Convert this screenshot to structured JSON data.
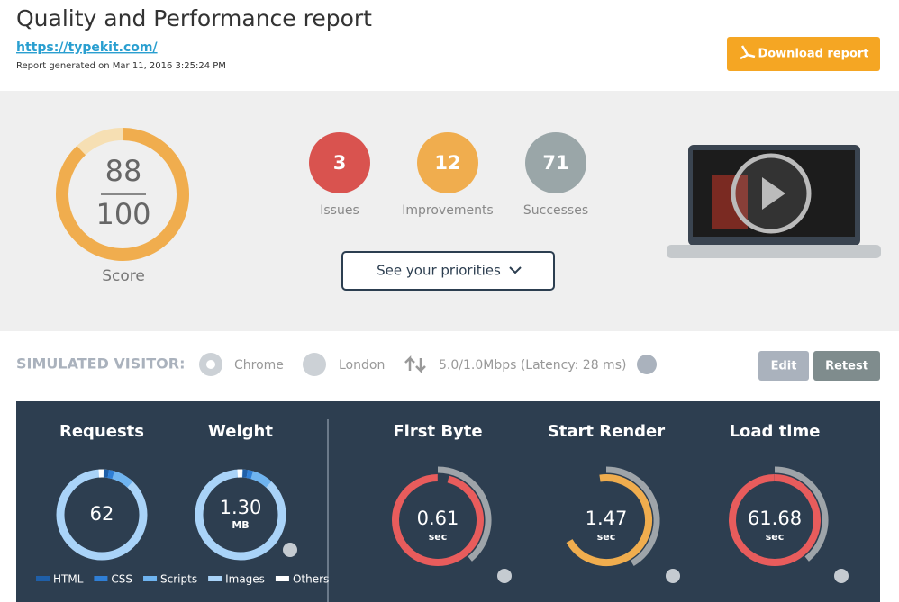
{
  "header": {
    "title": "Quality and Performance report",
    "url": "https://typekit.com/",
    "generated": "Report generated on Mar 11, 2016 3:25:24 PM",
    "download": "Download report"
  },
  "score": {
    "value": 88,
    "max": 100,
    "label": "Score"
  },
  "counts": [
    {
      "value": "3",
      "label": "Issues"
    },
    {
      "value": "12",
      "label": "Improvements"
    },
    {
      "value": "71",
      "label": "Successes"
    }
  ],
  "priorities": "See your priorities",
  "visitor": {
    "label": "SIMULATED VISITOR:",
    "browser": "Chrome",
    "location": "London",
    "connection": "5.0/1.0Mbps (Latency: 28 ms)",
    "edit": "Edit",
    "retest": "Retest"
  },
  "metrics": {
    "requests": {
      "title": "Requests",
      "value": "62"
    },
    "weight": {
      "title": "Weight",
      "value": "1.30",
      "unit": "MB"
    },
    "legend": [
      "HTML",
      "CSS",
      "Scripts",
      "Images",
      "Others"
    ],
    "timings": [
      {
        "title": "First Byte",
        "value": "0.61",
        "unit": "sec"
      },
      {
        "title": "Start Render",
        "value": "1.47",
        "unit": "sec"
      },
      {
        "title": "Load time",
        "value": "61.68",
        "unit": "sec"
      }
    ]
  }
}
